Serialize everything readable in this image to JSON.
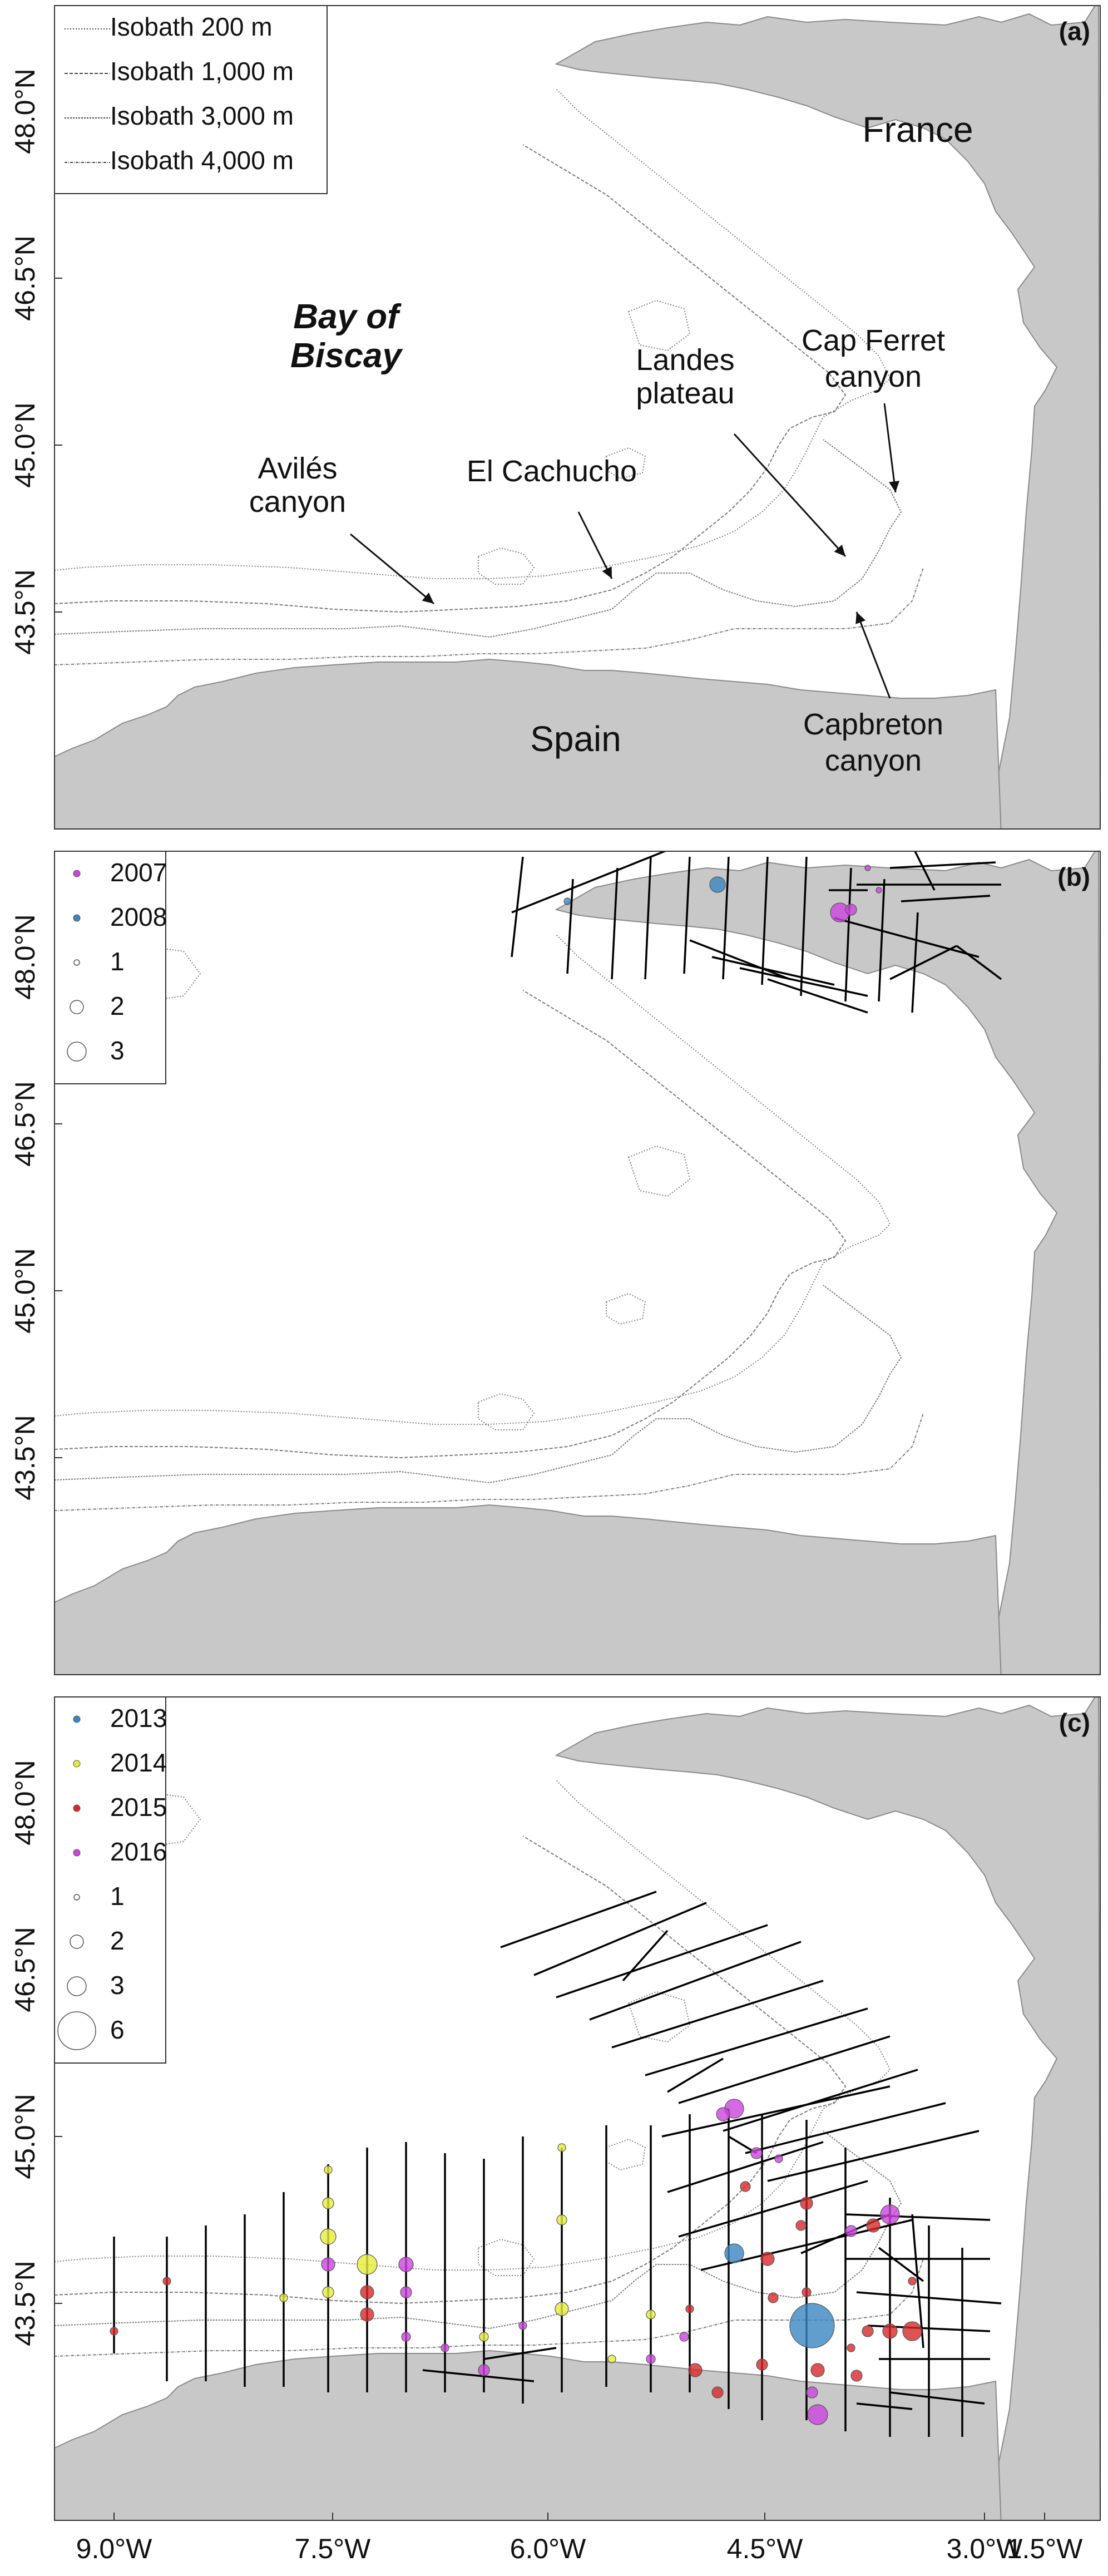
{
  "colors": {
    "land": "#c8c8c8",
    "land_stroke": "#8a8a8a",
    "sea": "#ffffff",
    "isobath": "#7a7a7a",
    "track": "#000000",
    "y2007": "#cc44dd",
    "y2008": "#3a86c0",
    "y2013": "#3a86c0",
    "y2014": "#e6ec3a",
    "y2015": "#d62828",
    "y2016": "#cc44dd"
  },
  "axes": {
    "y_labels": [
      "48.0°N",
      "46.5°N",
      "45.0°N",
      "43.5°N"
    ],
    "x_labels": [
      "9.0°W",
      "7.5°W",
      "6.0°W",
      "4.5°W",
      "3.0°W",
      "1.5°W"
    ]
  },
  "panels": [
    {
      "id": "a",
      "tag": "(a)",
      "legend": [
        {
          "kind": "line",
          "label": "Isobath 200 m",
          "dash": "2,3"
        },
        {
          "kind": "line",
          "label": "Isobath 1,000 m",
          "dash": "6,3"
        },
        {
          "kind": "line",
          "label": "Isobath 3,000 m",
          "dash": "3,2"
        },
        {
          "kind": "line",
          "label": "Isobath 4,000 m",
          "dash": "5,2,1,2"
        }
      ],
      "places": {
        "france": "France",
        "spain": "Spain",
        "bay_line1": "Bay of",
        "bay_line2": "Biscay",
        "landes_line1": "Landes",
        "landes_line2": "plateau",
        "capferret_line1": "Cap Ferret",
        "capferret_line2": "canyon",
        "cachucho": "El Cachucho",
        "aviles_line1": "Avilés",
        "aviles_line2": "canyon",
        "capbreton_line1": "Capbreton",
        "capbreton_line2": "canyon"
      }
    },
    {
      "id": "b",
      "tag": "(b)",
      "legend": [
        {
          "kind": "dot",
          "label": "2007",
          "color": "#cc44dd"
        },
        {
          "kind": "dot",
          "label": "2008",
          "color": "#3a86c0"
        },
        {
          "kind": "size",
          "label": "1",
          "r": 5
        },
        {
          "kind": "size",
          "label": "2",
          "r": 12
        },
        {
          "kind": "size",
          "label": "3",
          "r": 17
        }
      ]
    },
    {
      "id": "c",
      "tag": "(c)",
      "legend": [
        {
          "kind": "dot",
          "label": "2013",
          "color": "#3a86c0"
        },
        {
          "kind": "dot",
          "label": "2014",
          "color": "#e6ec3a"
        },
        {
          "kind": "dot",
          "label": "2015",
          "color": "#d62828"
        },
        {
          "kind": "dot",
          "label": "2016",
          "color": "#cc44dd"
        },
        {
          "kind": "size",
          "label": "1",
          "r": 5
        },
        {
          "kind": "size",
          "label": "2",
          "r": 12
        },
        {
          "kind": "size",
          "label": "3",
          "r": 17
        },
        {
          "kind": "size",
          "label": "6",
          "r": 34
        }
      ]
    }
  ]
}
